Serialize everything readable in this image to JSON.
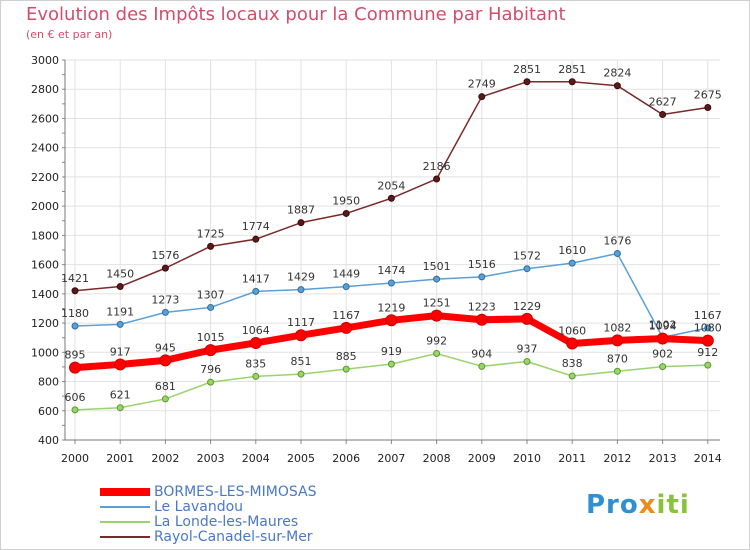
{
  "chart_data": {
    "type": "line",
    "title": "Evolution des Impôts locaux pour la Commune par Habitant",
    "subtitle": "(en € et par an)",
    "x": [
      "2000",
      "2001",
      "2002",
      "2003",
      "2004",
      "2005",
      "2006",
      "2007",
      "2008",
      "2009",
      "2010",
      "2011",
      "2012",
      "2013",
      "2014"
    ],
    "ylim": [
      400,
      3000
    ],
    "yticks": [
      400,
      600,
      800,
      1000,
      1200,
      1400,
      1600,
      1800,
      2000,
      2200,
      2400,
      2600,
      2800,
      3000
    ],
    "grid": true,
    "legend_position": "bottom-left",
    "series": [
      {
        "name": "BORMES-LES-MIMOSAS",
        "color": "#ff0000",
        "values": [
          895,
          917,
          945,
          1015,
          1064,
          1117,
          1167,
          1219,
          1251,
          1223,
          1229,
          1060,
          1082,
          1094,
          1080
        ]
      },
      {
        "name": "Le Lavandou",
        "color": "#5a9fd6",
        "values": [
          1180,
          1191,
          1273,
          1307,
          1417,
          1429,
          1449,
          1474,
          1501,
          1516,
          1572,
          1610,
          1676,
          1102,
          1167
        ]
      },
      {
        "name": "La Londe-les-Maures",
        "color": "#99d36b",
        "values": [
          606,
          621,
          681,
          796,
          835,
          851,
          885,
          919,
          992,
          904,
          937,
          838,
          870,
          902,
          912
        ]
      },
      {
        "name": "Rayol-Canadel-sur-Mer",
        "color": "#7a2a2a",
        "values": [
          1421,
          1450,
          1576,
          1725,
          1774,
          1887,
          1950,
          2054,
          2186,
          2749,
          2851,
          2851,
          2824,
          2627,
          2675
        ]
      }
    ]
  },
  "logo": {
    "part1": "Pro",
    "part2": "x",
    "part3": "iti"
  }
}
